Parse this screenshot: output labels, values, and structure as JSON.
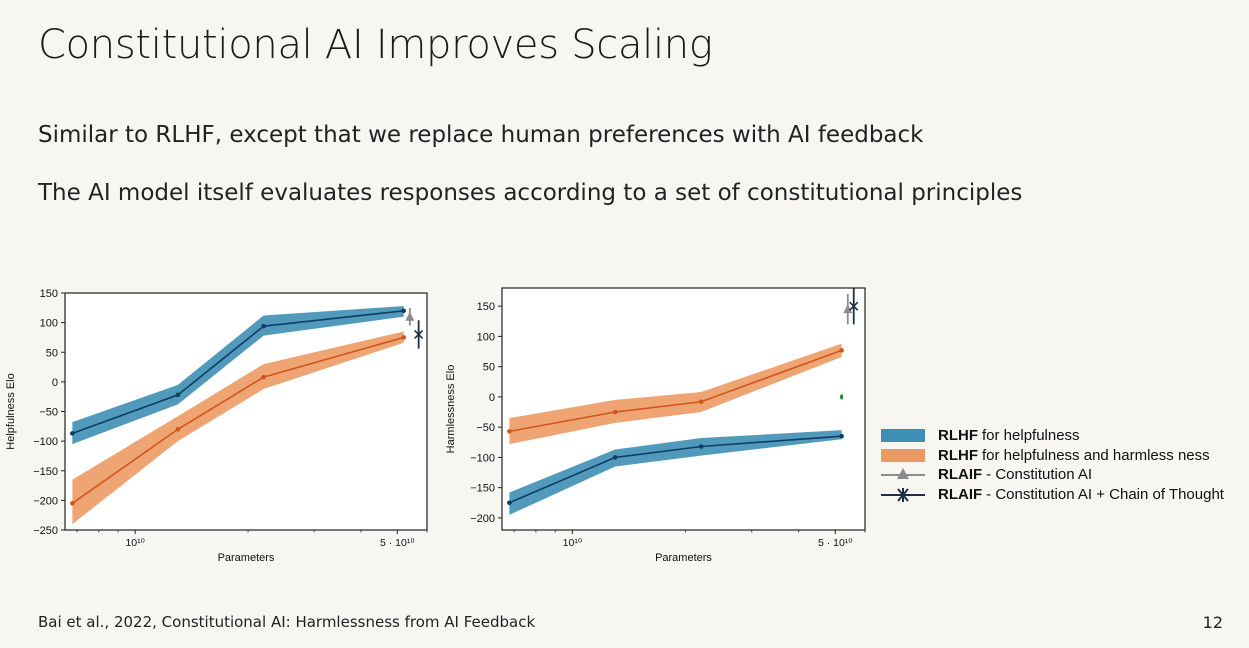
{
  "slide": {
    "title": "Constitutional AI Improves Scaling",
    "bullets": [
      "Similar to RLHF, except that we replace human preferences with AI feedback",
      "The AI model itself evaluates responses according to a set of constitutional principles"
    ],
    "citation": "Bai et al., 2022, Constitutional AI: Harmlessness from AI Feedback",
    "page_number": "12"
  },
  "colors": {
    "blue_band": "#3f8fb4",
    "blue_line": "#0e3d66",
    "orange_band": "#ec9a64",
    "orange_line": "#d2561b",
    "gray": "#8c8c8c",
    "green": "#1f8a2a"
  },
  "legend": [
    {
      "name": "RLHF",
      "text": " for helpfulness",
      "marker": "blue-band"
    },
    {
      "name": "RLHF",
      "text": " for helpfulness and harmless ness",
      "marker": "orange-band"
    },
    {
      "name": "RLAIF",
      "text": "- Constitution AI",
      "marker": "gray-triangle"
    },
    {
      "name": "RLAIF",
      "text": "- Constitution AI + Chain of Thought",
      "marker": "dark-x"
    }
  ],
  "chart_data": [
    {
      "type": "line",
      "xscale": "log",
      "xlabel": "Parameters",
      "ylabel": "Helpfulness Elo",
      "xlim": [
        6500000000,
        60000000000
      ],
      "ylim": [
        -250,
        150
      ],
      "yticks": [
        150,
        100,
        50,
        0,
        -50,
        -100,
        -150,
        -200,
        -250
      ],
      "xticks": [
        {
          "value": 10000000000,
          "label": "10¹⁰"
        },
        {
          "value": 50000000000,
          "label": "5 · 10¹⁰"
        }
      ],
      "series": [
        {
          "name": "RLHF for helpfulness",
          "x": [
            6800000000,
            13000000000,
            22000000000,
            52000000000
          ],
          "y": [
            -87,
            -22,
            94,
            120
          ],
          "lower": [
            -105,
            -38,
            78,
            110
          ],
          "upper": [
            -68,
            -5,
            112,
            128
          ]
        },
        {
          "name": "RLHF for helpfulness and harmless ness",
          "x": [
            6800000000,
            13000000000,
            22000000000,
            52000000000
          ],
          "y": [
            -205,
            -80,
            8,
            75
          ],
          "lower": [
            -240,
            -100,
            -12,
            66
          ],
          "upper": [
            -165,
            -58,
            30,
            85
          ]
        }
      ],
      "points": [
        {
          "name": "RLAIF- Constitution AI",
          "x": 54000000000,
          "y": 110,
          "err": 15
        },
        {
          "name": "RLAIF- Constitution AI + Chain of Thought",
          "x": 57000000000,
          "y": 80,
          "err": 24
        }
      ]
    },
    {
      "type": "line",
      "xscale": "log",
      "xlabel": "Parameters",
      "ylabel": "Harmlessness Elo",
      "xlim": [
        6500000000,
        60000000000
      ],
      "ylim": [
        -220,
        180
      ],
      "yticks": [
        150,
        100,
        50,
        0,
        -50,
        -100,
        -150,
        -200
      ],
      "xticks": [
        {
          "value": 10000000000,
          "label": "10¹⁰"
        },
        {
          "value": 50000000000,
          "label": "5 · 10¹⁰"
        }
      ],
      "series": [
        {
          "name": "RLHF for helpfulness",
          "x": [
            6800000000,
            13000000000,
            22000000000,
            52000000000
          ],
          "y": [
            -175,
            -100,
            -82,
            -65
          ],
          "lower": [
            -195,
            -115,
            -97,
            -70
          ],
          "upper": [
            -158,
            -87,
            -68,
            -55
          ]
        },
        {
          "name": "RLHF for helpfulness and harmless ness",
          "x": [
            6800000000,
            13000000000,
            22000000000,
            52000000000
          ],
          "y": [
            -57,
            -25,
            -8,
            77
          ],
          "lower": [
            -78,
            -43,
            -25,
            66
          ],
          "upper": [
            -35,
            -5,
            8,
            88
          ]
        }
      ],
      "points": [
        {
          "name": "RLAIF- Constitution AI",
          "x": 54000000000,
          "y": 145,
          "err": 25
        },
        {
          "name": "RLAIF- Constitution AI + Chain of Thought",
          "x": 56000000000,
          "y": 150,
          "err": 30
        },
        {
          "name": "green point",
          "x": 52000000000,
          "y": 0,
          "err": 4
        }
      ]
    }
  ]
}
